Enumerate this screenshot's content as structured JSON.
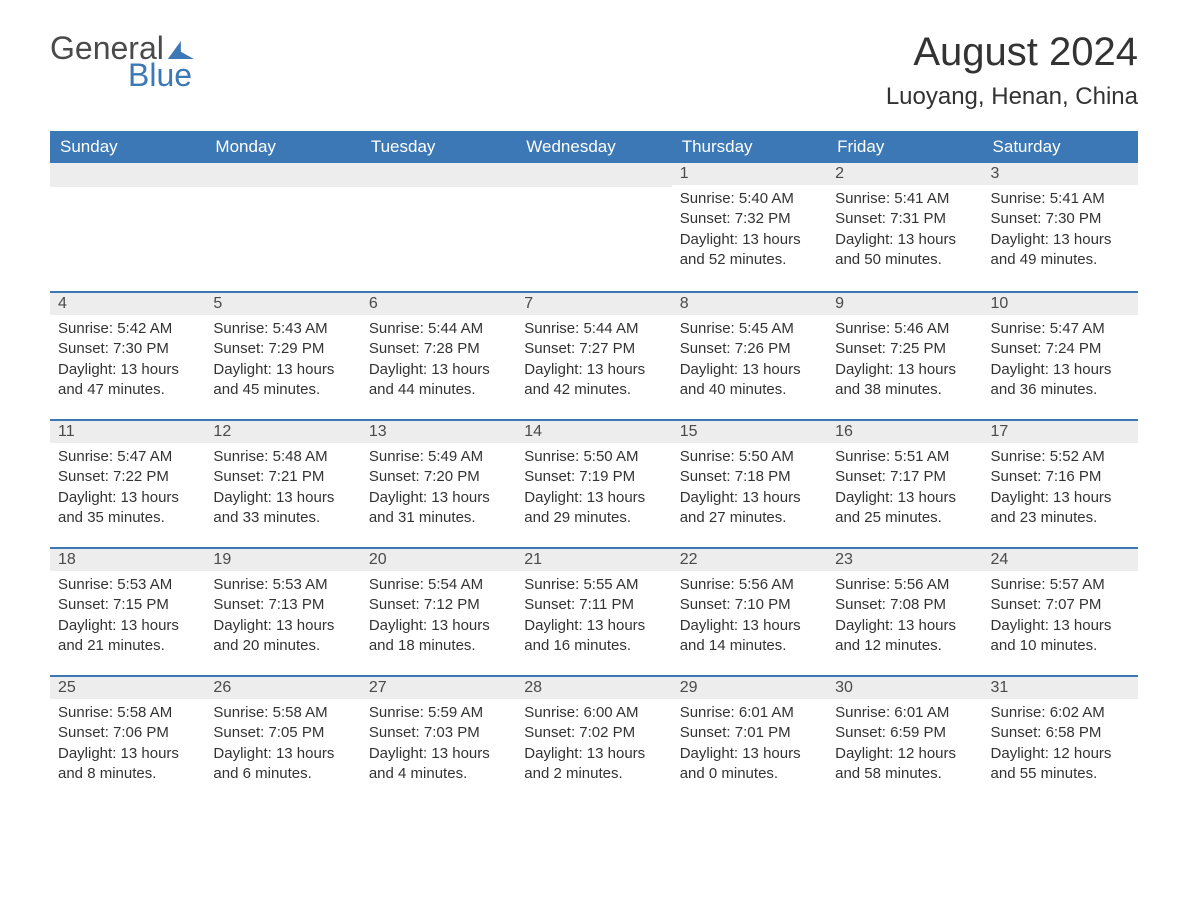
{
  "logo": {
    "text_general": "General",
    "text_blue": "Blue"
  },
  "title": "August 2024",
  "location": "Luoyang, Henan, China",
  "colors": {
    "header_bg": "#3b78b5",
    "header_text": "#ffffff",
    "daynum_bg": "#ededed",
    "row_divider": "#3b78b5",
    "body_bg": "#ffffff",
    "text": "#333333",
    "logo_gray": "#4a4a4a",
    "logo_blue": "#3b78b5"
  },
  "typography": {
    "title_fontsize_pt": 30,
    "location_fontsize_pt": 18,
    "header_fontsize_pt": 13,
    "body_fontsize_pt": 11
  },
  "day_headers": [
    "Sunday",
    "Monday",
    "Tuesday",
    "Wednesday",
    "Thursday",
    "Friday",
    "Saturday"
  ],
  "weeks": [
    [
      {
        "empty": true
      },
      {
        "empty": true
      },
      {
        "empty": true
      },
      {
        "empty": true
      },
      {
        "day": 1,
        "sunrise": "Sunrise: 5:40 AM",
        "sunset": "Sunset: 7:32 PM",
        "daylight": "Daylight: 13 hours and 52 minutes."
      },
      {
        "day": 2,
        "sunrise": "Sunrise: 5:41 AM",
        "sunset": "Sunset: 7:31 PM",
        "daylight": "Daylight: 13 hours and 50 minutes."
      },
      {
        "day": 3,
        "sunrise": "Sunrise: 5:41 AM",
        "sunset": "Sunset: 7:30 PM",
        "daylight": "Daylight: 13 hours and 49 minutes."
      }
    ],
    [
      {
        "day": 4,
        "sunrise": "Sunrise: 5:42 AM",
        "sunset": "Sunset: 7:30 PM",
        "daylight": "Daylight: 13 hours and 47 minutes."
      },
      {
        "day": 5,
        "sunrise": "Sunrise: 5:43 AM",
        "sunset": "Sunset: 7:29 PM",
        "daylight": "Daylight: 13 hours and 45 minutes."
      },
      {
        "day": 6,
        "sunrise": "Sunrise: 5:44 AM",
        "sunset": "Sunset: 7:28 PM",
        "daylight": "Daylight: 13 hours and 44 minutes."
      },
      {
        "day": 7,
        "sunrise": "Sunrise: 5:44 AM",
        "sunset": "Sunset: 7:27 PM",
        "daylight": "Daylight: 13 hours and 42 minutes."
      },
      {
        "day": 8,
        "sunrise": "Sunrise: 5:45 AM",
        "sunset": "Sunset: 7:26 PM",
        "daylight": "Daylight: 13 hours and 40 minutes."
      },
      {
        "day": 9,
        "sunrise": "Sunrise: 5:46 AM",
        "sunset": "Sunset: 7:25 PM",
        "daylight": "Daylight: 13 hours and 38 minutes."
      },
      {
        "day": 10,
        "sunrise": "Sunrise: 5:47 AM",
        "sunset": "Sunset: 7:24 PM",
        "daylight": "Daylight: 13 hours and 36 minutes."
      }
    ],
    [
      {
        "day": 11,
        "sunrise": "Sunrise: 5:47 AM",
        "sunset": "Sunset: 7:22 PM",
        "daylight": "Daylight: 13 hours and 35 minutes."
      },
      {
        "day": 12,
        "sunrise": "Sunrise: 5:48 AM",
        "sunset": "Sunset: 7:21 PM",
        "daylight": "Daylight: 13 hours and 33 minutes."
      },
      {
        "day": 13,
        "sunrise": "Sunrise: 5:49 AM",
        "sunset": "Sunset: 7:20 PM",
        "daylight": "Daylight: 13 hours and 31 minutes."
      },
      {
        "day": 14,
        "sunrise": "Sunrise: 5:50 AM",
        "sunset": "Sunset: 7:19 PM",
        "daylight": "Daylight: 13 hours and 29 minutes."
      },
      {
        "day": 15,
        "sunrise": "Sunrise: 5:50 AM",
        "sunset": "Sunset: 7:18 PM",
        "daylight": "Daylight: 13 hours and 27 minutes."
      },
      {
        "day": 16,
        "sunrise": "Sunrise: 5:51 AM",
        "sunset": "Sunset: 7:17 PM",
        "daylight": "Daylight: 13 hours and 25 minutes."
      },
      {
        "day": 17,
        "sunrise": "Sunrise: 5:52 AM",
        "sunset": "Sunset: 7:16 PM",
        "daylight": "Daylight: 13 hours and 23 minutes."
      }
    ],
    [
      {
        "day": 18,
        "sunrise": "Sunrise: 5:53 AM",
        "sunset": "Sunset: 7:15 PM",
        "daylight": "Daylight: 13 hours and 21 minutes."
      },
      {
        "day": 19,
        "sunrise": "Sunrise: 5:53 AM",
        "sunset": "Sunset: 7:13 PM",
        "daylight": "Daylight: 13 hours and 20 minutes."
      },
      {
        "day": 20,
        "sunrise": "Sunrise: 5:54 AM",
        "sunset": "Sunset: 7:12 PM",
        "daylight": "Daylight: 13 hours and 18 minutes."
      },
      {
        "day": 21,
        "sunrise": "Sunrise: 5:55 AM",
        "sunset": "Sunset: 7:11 PM",
        "daylight": "Daylight: 13 hours and 16 minutes."
      },
      {
        "day": 22,
        "sunrise": "Sunrise: 5:56 AM",
        "sunset": "Sunset: 7:10 PM",
        "daylight": "Daylight: 13 hours and 14 minutes."
      },
      {
        "day": 23,
        "sunrise": "Sunrise: 5:56 AM",
        "sunset": "Sunset: 7:08 PM",
        "daylight": "Daylight: 13 hours and 12 minutes."
      },
      {
        "day": 24,
        "sunrise": "Sunrise: 5:57 AM",
        "sunset": "Sunset: 7:07 PM",
        "daylight": "Daylight: 13 hours and 10 minutes."
      }
    ],
    [
      {
        "day": 25,
        "sunrise": "Sunrise: 5:58 AM",
        "sunset": "Sunset: 7:06 PM",
        "daylight": "Daylight: 13 hours and 8 minutes."
      },
      {
        "day": 26,
        "sunrise": "Sunrise: 5:58 AM",
        "sunset": "Sunset: 7:05 PM",
        "daylight": "Daylight: 13 hours and 6 minutes."
      },
      {
        "day": 27,
        "sunrise": "Sunrise: 5:59 AM",
        "sunset": "Sunset: 7:03 PM",
        "daylight": "Daylight: 13 hours and 4 minutes."
      },
      {
        "day": 28,
        "sunrise": "Sunrise: 6:00 AM",
        "sunset": "Sunset: 7:02 PM",
        "daylight": "Daylight: 13 hours and 2 minutes."
      },
      {
        "day": 29,
        "sunrise": "Sunrise: 6:01 AM",
        "sunset": "Sunset: 7:01 PM",
        "daylight": "Daylight: 13 hours and 0 minutes."
      },
      {
        "day": 30,
        "sunrise": "Sunrise: 6:01 AM",
        "sunset": "Sunset: 6:59 PM",
        "daylight": "Daylight: 12 hours and 58 minutes."
      },
      {
        "day": 31,
        "sunrise": "Sunrise: 6:02 AM",
        "sunset": "Sunset: 6:58 PM",
        "daylight": "Daylight: 12 hours and 55 minutes."
      }
    ]
  ]
}
